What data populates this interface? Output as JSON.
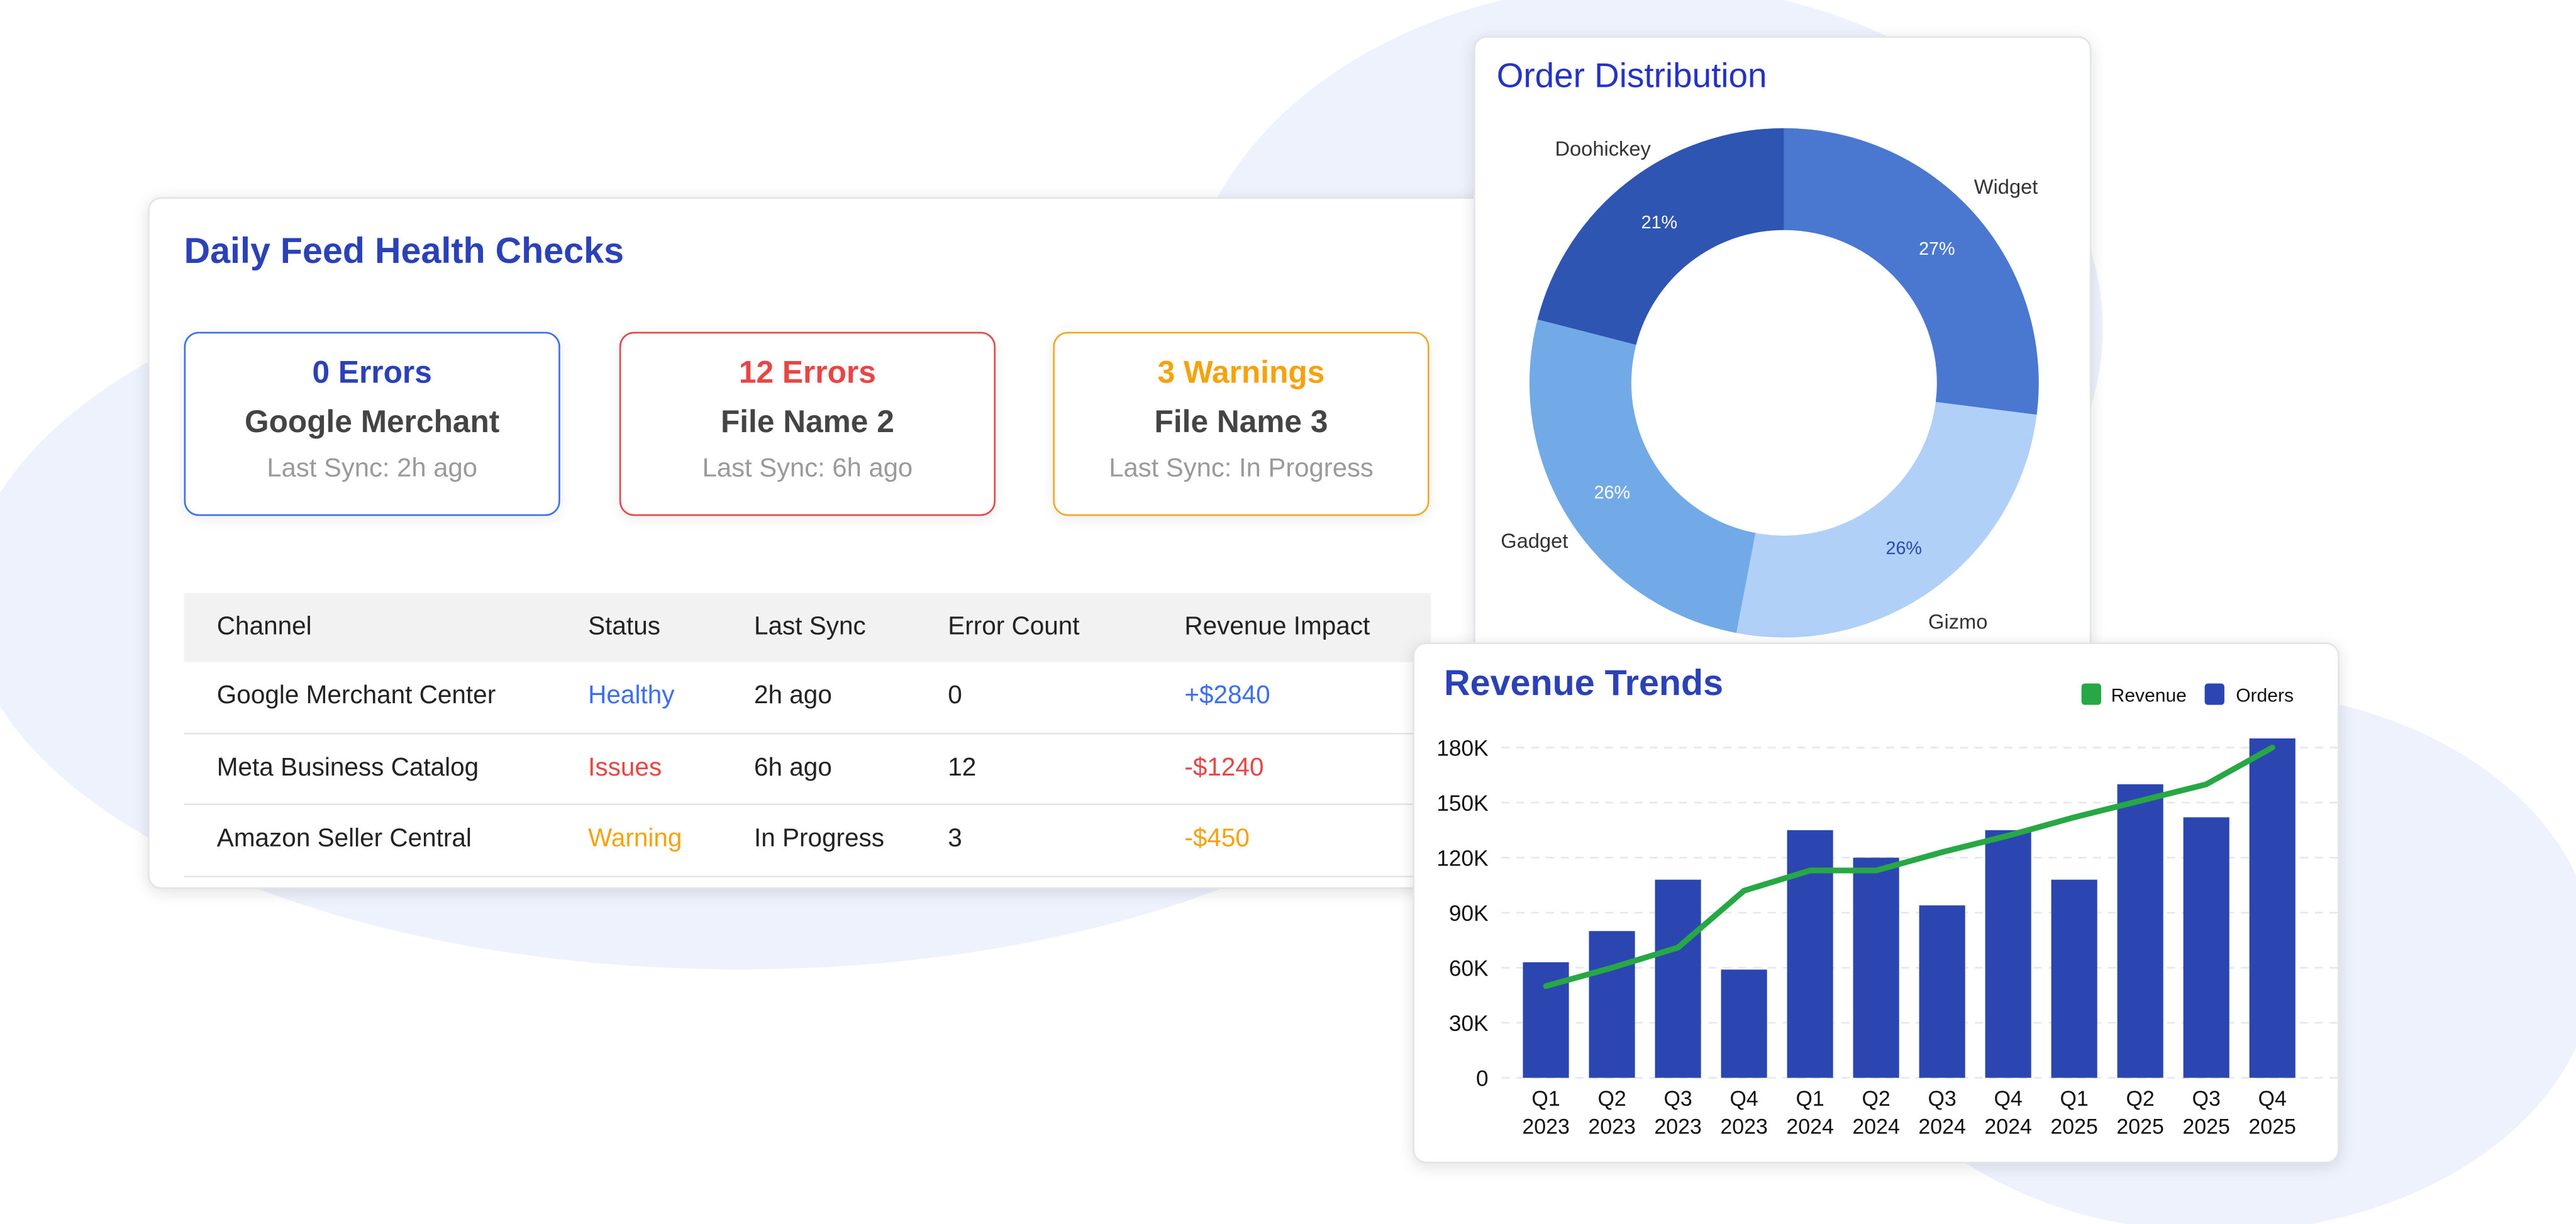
{
  "feed_health": {
    "title": "Daily Feed Health Checks",
    "summary": [
      {
        "value": "0 Errors",
        "name": "Google Merchant",
        "sync": "Last Sync: 2h ago",
        "color": "#2b41b8",
        "border": "#3b6ef0"
      },
      {
        "value": "12 Errors",
        "name": "File Name 2",
        "sync": "Last Sync: 6h ago",
        "color": "#e84545",
        "border": "#e84545"
      },
      {
        "value": "3 Warnings",
        "name": "File Name 3",
        "sync": "Last Sync: In Progress",
        "color": "#f5a20f",
        "border": "#f5a623"
      }
    ],
    "table": {
      "headers": [
        "Channel",
        "Status",
        "Last Sync",
        "Error Count",
        "Revenue Impact"
      ],
      "rows": [
        [
          "Google Merchant Center",
          "Healthy",
          "2h ago",
          "0",
          "+$2840"
        ],
        [
          "Meta Business Catalog",
          "Issues",
          "6h ago",
          "12",
          "-$1240"
        ],
        [
          "Amazon Seller Central",
          "Warning",
          "In Progress",
          "3",
          "-$450"
        ]
      ],
      "status_colors": [
        "#3b6ef0",
        "#e84545",
        "#f5a20f"
      ]
    }
  },
  "chart_data": [
    {
      "type": "pie",
      "title": "Order Distribution",
      "donut": true,
      "categories": [
        "Widget",
        "Gizmo",
        "Gadget",
        "Doohickey"
      ],
      "values": [
        27,
        26,
        26,
        21
      ],
      "labels": [
        "27%",
        "26%",
        "26%",
        "21%"
      ],
      "colors": [
        "#4a78d0",
        "#b1d0f7",
        "#72aae8",
        "#2f55b3"
      ]
    },
    {
      "type": "bar",
      "title": "Revenue Trends",
      "categories": [
        "Q1 2023",
        "Q2 2023",
        "Q3 2023",
        "Q4 2023",
        "Q1 2024",
        "Q2 2024",
        "Q3 2024",
        "Q4 2024",
        "Q1 2025",
        "Q2 2025",
        "Q3 2025",
        "Q4 2025"
      ],
      "series": [
        {
          "name": "Orders",
          "type": "bar",
          "color": "#2c46b1",
          "values": [
            63000,
            80000,
            108000,
            59000,
            135000,
            120000,
            94000,
            135000,
            108000,
            160000,
            142000,
            185000
          ]
        },
        {
          "name": "Revenue",
          "type": "line",
          "color": "#27a844",
          "values": [
            50000,
            60000,
            71000,
            102000,
            113000,
            113000,
            123000,
            132000,
            142000,
            151000,
            160000,
            180000
          ]
        }
      ],
      "yticks": [
        "0",
        "30K",
        "60K",
        "90K",
        "120K",
        "150K",
        "180K"
      ],
      "ylim": [
        0,
        180000
      ],
      "grid": true,
      "legend": "top-right"
    }
  ]
}
